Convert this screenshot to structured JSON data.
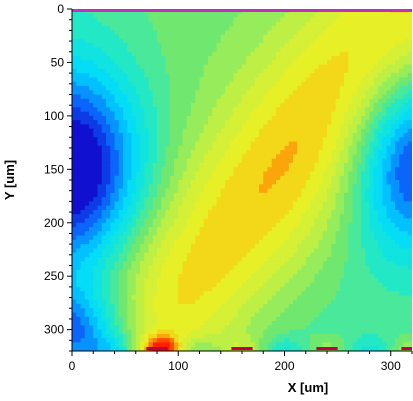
{
  "chart_data": {
    "type": "heatmap",
    "xlabel": "X [um]",
    "ylabel": "Y [um]",
    "xlim": [
      0,
      320
    ],
    "ylim": [
      0,
      320
    ],
    "y_inverted": true,
    "x_ticks": [
      0,
      100,
      200,
      300
    ],
    "x_tick_labels": [
      "0",
      "100",
      "200",
      "300"
    ],
    "y_ticks": [
      0,
      50,
      100,
      150,
      200,
      250,
      300
    ],
    "y_tick_labels": [
      "0",
      "50",
      "100",
      "150",
      "200",
      "250",
      "300"
    ],
    "colormap": [
      "#1010d0",
      "#0a70ff",
      "#00d8ff",
      "#18e8d0",
      "#70e870",
      "#c8f040",
      "#f0f020",
      "#ff8000",
      "#ff2000"
    ],
    "field_features": [
      {
        "kind": "low",
        "x": 0,
        "y": 150,
        "sx": 45,
        "sy": 65,
        "amp": -0.55
      },
      {
        "kind": "low",
        "x": 320,
        "y": 140,
        "sx": 40,
        "sy": 60,
        "amp": -0.45
      },
      {
        "kind": "low",
        "x": 0,
        "y": 320,
        "sx": 40,
        "sy": 40,
        "amp": -0.6
      },
      {
        "kind": "diagonal-band",
        "x0": 60,
        "y0": 320,
        "x1": 320,
        "y1": 0,
        "width": 55,
        "amp": 0.35
      },
      {
        "kind": "hot-spot",
        "x": 85,
        "y": 318,
        "sx": 10,
        "sy": 8,
        "amp": 0.35
      }
    ],
    "electrodes": [
      {
        "x_start": 0,
        "x_end": 320,
        "y": 0,
        "color": "#c030c0"
      },
      {
        "x_start": 70,
        "x_end": 90,
        "y": 320,
        "color": "#c00040"
      },
      {
        "x_start": 150,
        "x_end": 170,
        "y": 320,
        "color": "#c00040"
      },
      {
        "x_start": 230,
        "x_end": 250,
        "y": 320,
        "color": "#c00040"
      },
      {
        "x_start": 310,
        "x_end": 320,
        "y": 320,
        "color": "#c00040"
      }
    ],
    "grid": false,
    "legend": "none"
  }
}
